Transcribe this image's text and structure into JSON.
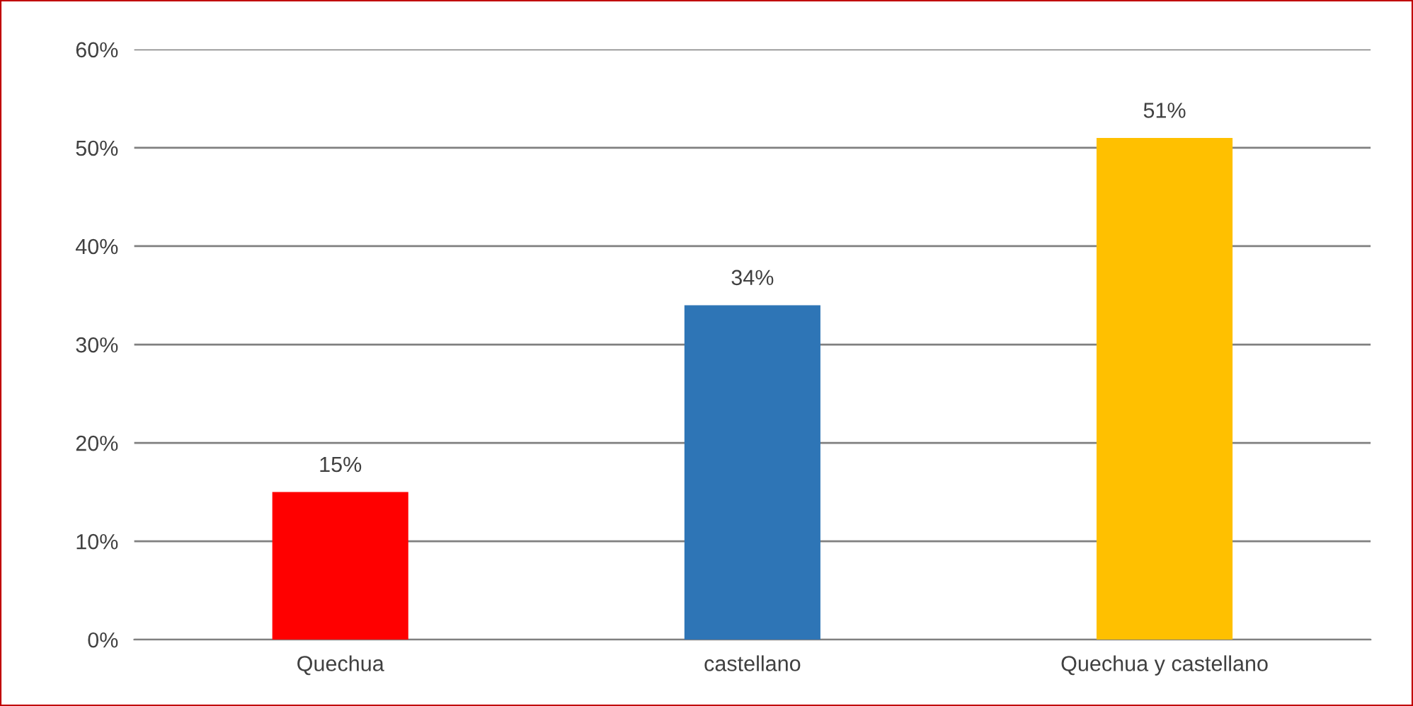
{
  "chart_data": {
    "type": "bar",
    "categories": [
      "Quechua",
      "castellano",
      "Quechua y castellano"
    ],
    "values": [
      15,
      34,
      51
    ],
    "colors": [
      "#ff0000",
      "#2e75b6",
      "#ffc000"
    ],
    "value_labels": [
      "15%",
      "34%",
      "51%"
    ],
    "ylim": [
      0,
      60
    ],
    "yticks": [
      {
        "value": 0,
        "label": "0%"
      },
      {
        "value": 10,
        "label": "10%"
      },
      {
        "value": 20,
        "label": "20%"
      },
      {
        "value": 30,
        "label": "30%"
      },
      {
        "value": 40,
        "label": "40%"
      },
      {
        "value": 50,
        "label": "50%"
      },
      {
        "value": 60,
        "label": "60%"
      }
    ],
    "grid": "y",
    "legend": false
  }
}
